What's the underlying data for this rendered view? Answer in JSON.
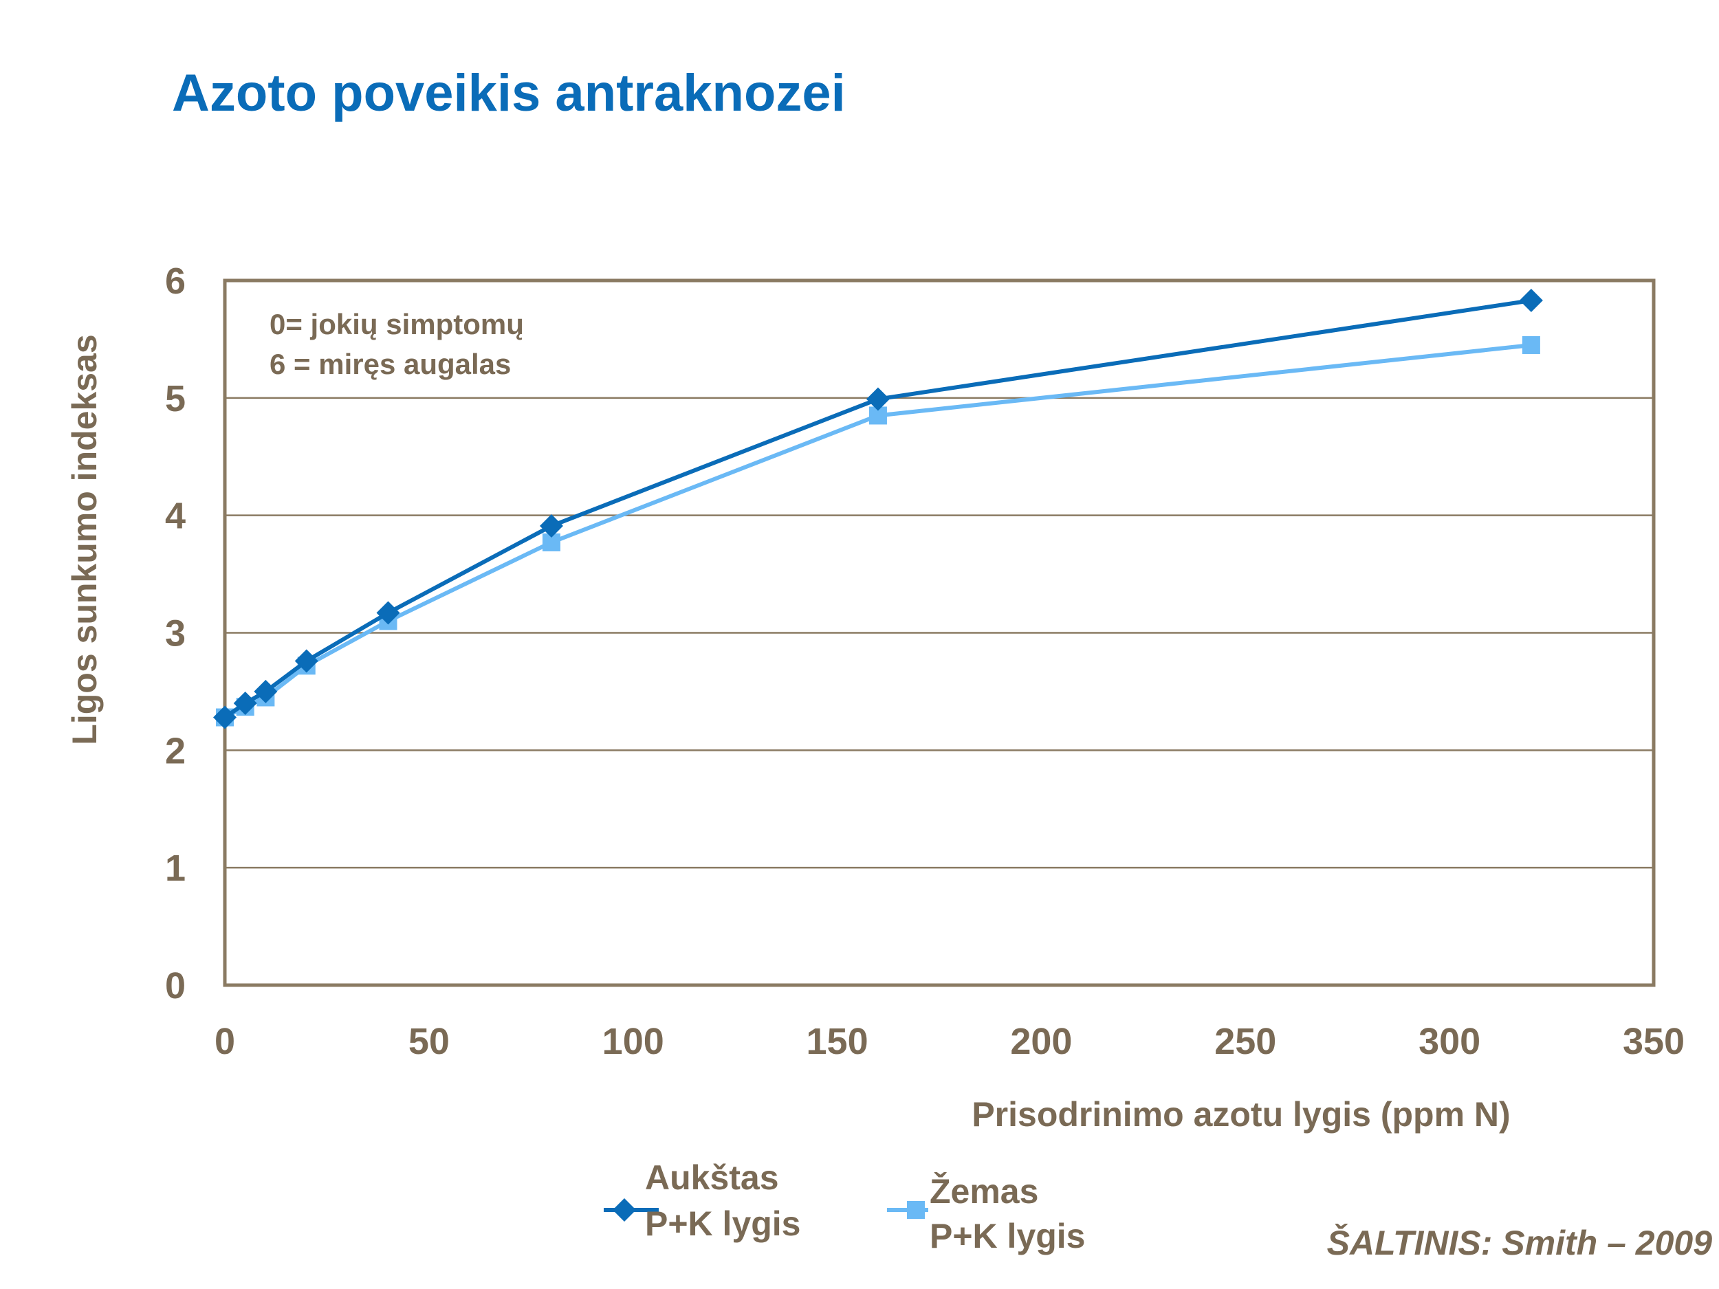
{
  "title": "Azoto poveikis antraknozei",
  "source": "ŠALTINIS: Smith – 2009",
  "colors": {
    "title": "#0a6cb8",
    "text": "#7a6a55",
    "frame": "#8a7a62",
    "series_high": "#0a6cb8",
    "series_low": "#6ab9f5"
  },
  "chart_data": {
    "type": "line",
    "title": "Azoto poveikis antraknozei",
    "xlabel": "Prisodrinimo azotu lygis (ppm N)",
    "ylabel": "Ligos sunkumo indeksas",
    "xlim": [
      0,
      350
    ],
    "ylim": [
      0,
      6
    ],
    "xticks": [
      0,
      50,
      100,
      150,
      200,
      250,
      300,
      350
    ],
    "yticks": [
      0,
      1,
      2,
      3,
      4,
      5,
      6
    ],
    "grid": "horizontal",
    "annotations": [
      "0= jokių simptomų",
      "6 = miręs augalas"
    ],
    "legend_position": "bottom",
    "series": [
      {
        "name": "Aukštas P+K lygis",
        "name_lines": [
          "Aukštas",
          "P+K lygis"
        ],
        "marker": "diamond",
        "color": "#0a6cb8",
        "x": [
          0,
          5,
          10,
          20,
          40,
          80,
          160,
          320
        ],
        "y": [
          2.28,
          2.4,
          2.5,
          2.76,
          3.17,
          3.91,
          4.99,
          5.83
        ]
      },
      {
        "name": "Žemas P+K lygis",
        "name_lines": [
          "Žemas",
          "P+K lygis"
        ],
        "marker": "square",
        "color": "#6ab9f5",
        "x": [
          0,
          5,
          10,
          20,
          40,
          80,
          160,
          320
        ],
        "y": [
          2.28,
          2.37,
          2.45,
          2.72,
          3.1,
          3.77,
          4.85,
          5.45
        ]
      }
    ]
  }
}
